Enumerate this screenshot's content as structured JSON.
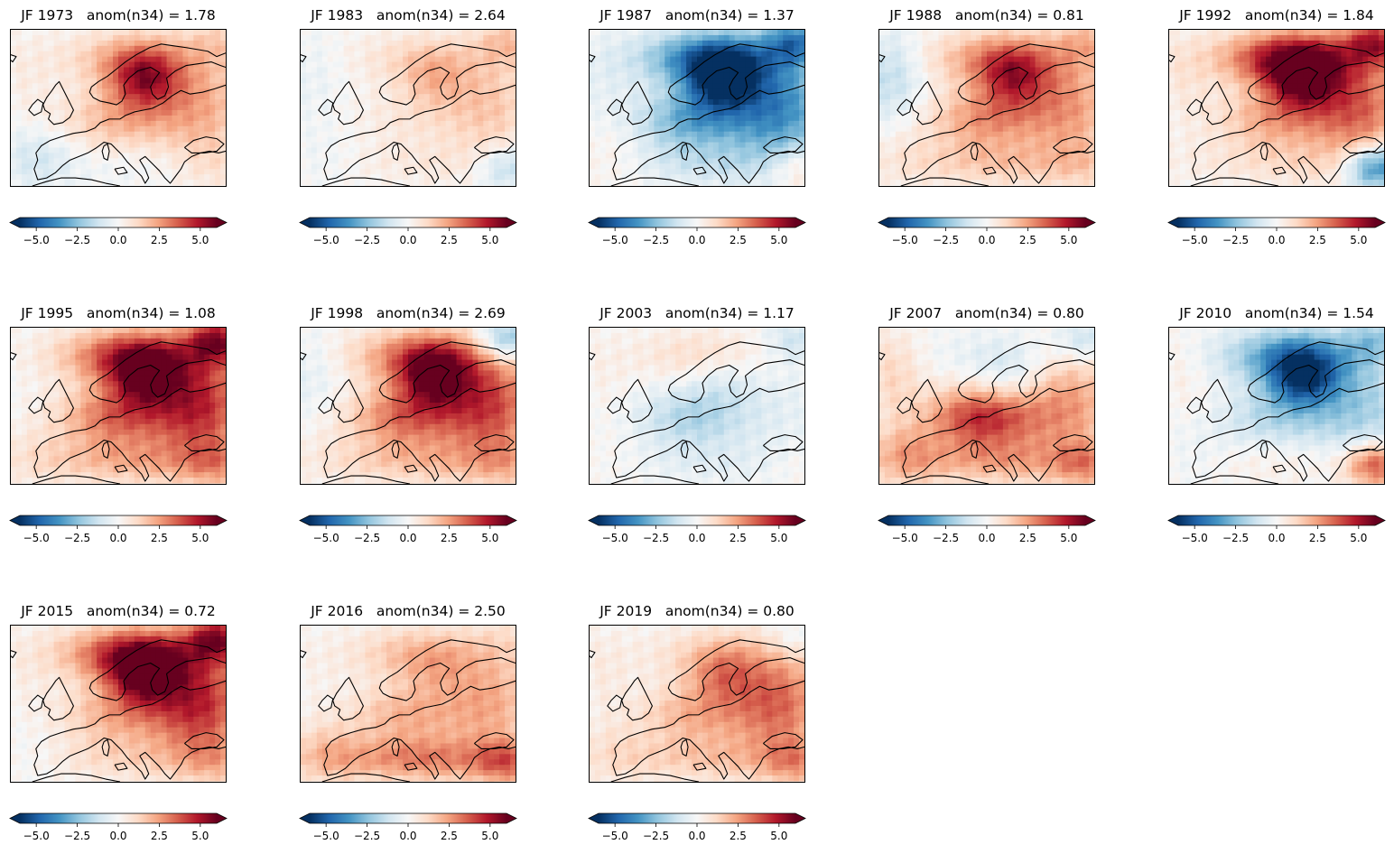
{
  "colormap": {
    "name": "RdBu_r",
    "stops": [
      "#053061",
      "#2166ac",
      "#4393c3",
      "#92c5de",
      "#d1e5f0",
      "#f7f7f7",
      "#fddbc7",
      "#f4a582",
      "#d6604d",
      "#b2182b",
      "#67001f"
    ],
    "vmin": -6,
    "vmax": 6,
    "extend": "both"
  },
  "colorbar_ticks": [
    "−5.0",
    "−2.5",
    "0.0",
    "2.5",
    "5.0"
  ],
  "colorbar_tick_values": [
    -5,
    -2.5,
    0,
    2.5,
    5
  ],
  "coastline_color": "#000000",
  "panels": [
    {
      "title": "JF 1973   anom(n34) = 1.78",
      "pattern": {
        "north": 1.8,
        "scand": 4.2,
        "central": 1.8,
        "east": 2.2,
        "south": -0.3,
        "sw": -1.0,
        "nw": 0.4,
        "ne_corner": 1.0,
        "se_corner": 0.5
      }
    },
    {
      "title": "JF 1983   anom(n34) = 2.64",
      "pattern": {
        "north": 1.0,
        "scand": 1.4,
        "central": 0.6,
        "east": 1.6,
        "south": 0.5,
        "sw": -0.3,
        "nw": -0.4,
        "ne_corner": 1.5,
        "se_corner": -1.8
      }
    },
    {
      "title": "JF 1987   anom(n34) = 1.37",
      "pattern": {
        "north": -4.0,
        "scand": -5.2,
        "central": -3.0,
        "east": -3.8,
        "south": -1.0,
        "sw": 0.5,
        "nw": -0.4,
        "ne_corner": -3.5,
        "se_corner": 1.5
      }
    },
    {
      "title": "JF 1988   anom(n34) = 0.81",
      "pattern": {
        "north": 2.5,
        "scand": 3.4,
        "central": 2.5,
        "east": 2.5,
        "south": 1.4,
        "sw": 0.5,
        "nw": -1.5,
        "ne_corner": 1.5,
        "se_corner": 0.6
      }
    },
    {
      "title": "JF 1992   anom(n34) = 1.84",
      "pattern": {
        "north": 4.8,
        "scand": 5.0,
        "central": 2.2,
        "east": 3.5,
        "south": 0.8,
        "sw": 0.2,
        "nw": 0.6,
        "ne_corner": 4.0,
        "se_corner": -4.5
      }
    },
    {
      "title": "JF 1995   anom(n34) = 1.08",
      "pattern": {
        "north": 4.0,
        "scand": 4.4,
        "central": 3.2,
        "east": 4.5,
        "south": 1.8,
        "sw": 0.6,
        "nw": 0.0,
        "ne_corner": 4.5,
        "se_corner": 1.5
      }
    },
    {
      "title": "JF 1998   anom(n34) = 2.69",
      "pattern": {
        "north": 3.0,
        "scand": 4.8,
        "central": 3.2,
        "east": 4.0,
        "south": 1.5,
        "sw": 0.3,
        "nw": -0.6,
        "ne_corner": -3.0,
        "se_corner": 1.0
      }
    },
    {
      "title": "JF 2003   anom(n34) = 1.17",
      "pattern": {
        "north": 1.2,
        "scand": -0.8,
        "central": -1.8,
        "east": -0.5,
        "south": -0.5,
        "sw": 0.2,
        "nw": 0.3,
        "ne_corner": -1.2,
        "se_corner": 0.3
      }
    },
    {
      "title": "JF 2007   anom(n34) = 0.80",
      "pattern": {
        "north": -0.5,
        "scand": -1.0,
        "central": 4.5,
        "east": 2.5,
        "south": 2.0,
        "sw": 2.0,
        "nw": 1.2,
        "ne_corner": -1.5,
        "se_corner": 2.0
      }
    },
    {
      "title": "JF 2010   anom(n34) = 1.54",
      "pattern": {
        "north": -3.0,
        "scand": -4.8,
        "central": -1.5,
        "east": -2.0,
        "south": 0.5,
        "sw": -0.3,
        "nw": 0.4,
        "ne_corner": -1.8,
        "se_corner": 3.8
      }
    },
    {
      "title": "JF 2015   anom(n34) = 0.72",
      "pattern": {
        "north": 4.2,
        "scand": 5.0,
        "central": 2.0,
        "east": 4.5,
        "south": 1.0,
        "sw": -0.2,
        "nw": 0.3,
        "ne_corner": 4.5,
        "se_corner": 1.0
      }
    },
    {
      "title": "JF 2016   anom(n34) = 2.50",
      "pattern": {
        "north": 1.8,
        "scand": 0.8,
        "central": 2.0,
        "east": 2.2,
        "south": 2.8,
        "sw": 1.5,
        "nw": 0.2,
        "ne_corner": 0.5,
        "se_corner": 2.5
      }
    },
    {
      "title": "JF 2019   anom(n34) = 0.80",
      "pattern": {
        "north": 1.0,
        "scand": 2.2,
        "central": 2.0,
        "east": 3.4,
        "south": 1.4,
        "sw": 0.8,
        "nw": 0.5,
        "ne_corner": -0.8,
        "se_corner": 1.8
      }
    }
  ]
}
